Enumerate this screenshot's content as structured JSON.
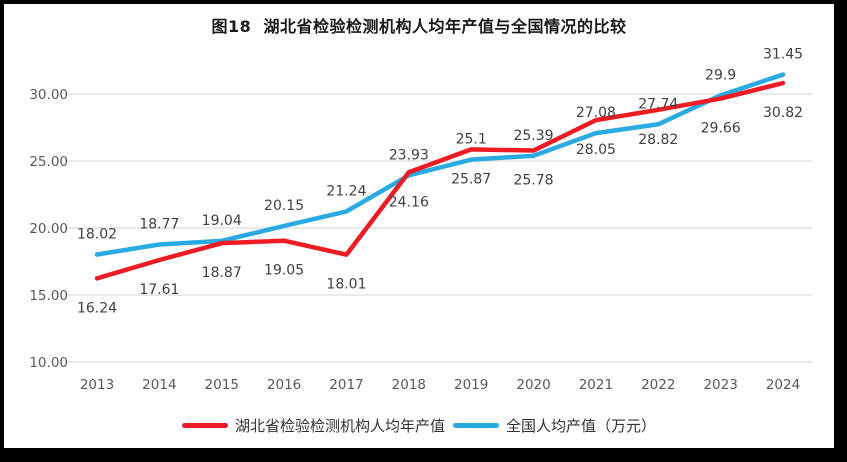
{
  "title": "图18  湖北省检验检测机构人均年产值与全国情况的比较",
  "frame": {
    "border_color": "#000000",
    "background_color": "#ffffff"
  },
  "chart_data": {
    "type": "line",
    "title": "图18  湖北省检验检测机构人均年产值与全国情况的比较",
    "categories": [
      "2013",
      "2014",
      "2015",
      "2016",
      "2017",
      "2018",
      "2019",
      "2020",
      "2021",
      "2022",
      "2023",
      "2024"
    ],
    "series": [
      {
        "name": "湖北省检验检测机构人均年产值",
        "color": "#ed1c24",
        "values": [
          16.24,
          17.61,
          18.87,
          19.05,
          18.01,
          24.16,
          25.87,
          25.78,
          28.05,
          28.82,
          29.66,
          30.82
        ],
        "labels": [
          "16.24",
          "17.61",
          "18.87",
          "19.05",
          "18.01",
          "24.16",
          "25.87",
          "25.78",
          "28.05",
          "28.82",
          "29.66",
          "30.82"
        ],
        "label_position": "below"
      },
      {
        "name": "全国人均产值（万元）",
        "color": "#29abe2",
        "values": [
          18.02,
          18.77,
          19.04,
          20.15,
          21.24,
          23.93,
          25.1,
          25.39,
          27.08,
          27.74,
          29.9,
          31.45
        ],
        "labels": [
          "18.02",
          "18.77",
          "19.04",
          "20.15",
          "21.24",
          "23.93",
          "25.1",
          "25.39",
          "27.08",
          "27.74",
          "29.9",
          "31.45"
        ],
        "label_position": "above"
      }
    ],
    "y_ticks": [
      "10.00",
      "15.00",
      "20.00",
      "25.00",
      "30.00"
    ],
    "y_tick_values": [
      10,
      15,
      20,
      25,
      30
    ],
    "ylim": [
      10,
      32.5
    ],
    "xlabel": "",
    "ylabel": "",
    "grid": true,
    "legend_position": "bottom",
    "colors": {
      "gridline": "#e2e2e2",
      "axis_tick_text": "#595959",
      "data_label_text": "#404040"
    }
  }
}
